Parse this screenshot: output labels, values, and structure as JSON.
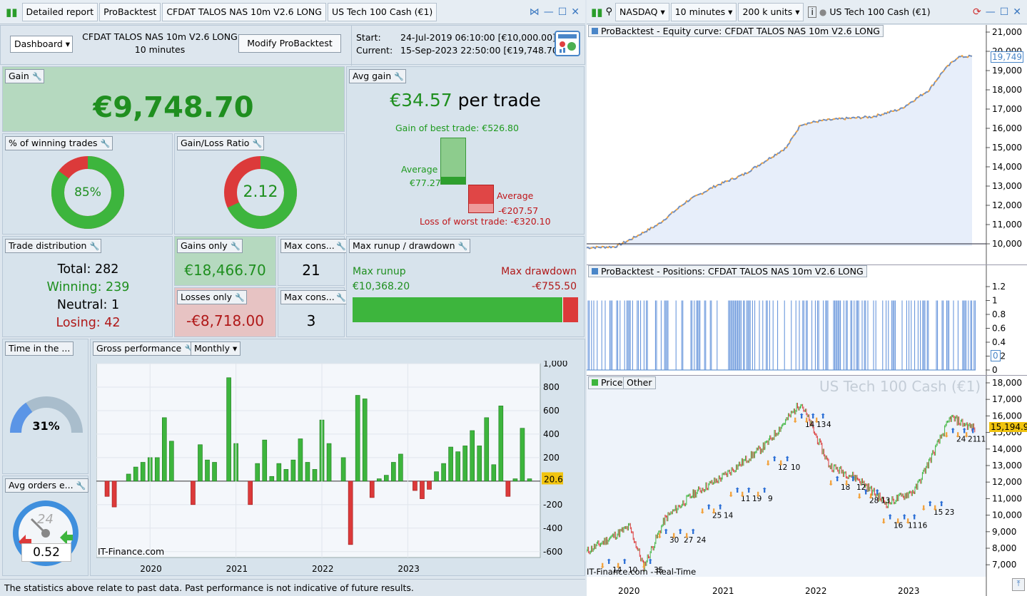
{
  "left_toolbar": {
    "tab1": "Detailed report",
    "tab2": "ProBacktest",
    "tab3": "CFDAT TALOS NAS 10m V2.6 LONG",
    "tab4": "US Tech 100 Cash (€1)"
  },
  "right_toolbar": {
    "market": "NASDAQ",
    "timeframe": "10 minutes",
    "units": "200 k units",
    "instrument": "US Tech 100 Cash (€1)"
  },
  "header": {
    "dashboard": "Dashboard",
    "system_name": "CFDAT TALOS NAS 10m V2.6 LONG",
    "system_tf": "10 minutes",
    "modify": "Modify ProBacktest",
    "start_label": "Start:",
    "start_value": "24-Jul-2019 06:10:00 [€10,000.00]",
    "current_label": "Current:",
    "current_value": "15-Sep-2023 22:50:00 [€19,748.70]"
  },
  "gain": {
    "title": "Gain",
    "value": "€9,748.70"
  },
  "avg_gain": {
    "title": "Avg gain",
    "value": "€34.57",
    "suffix": "per trade",
    "best": "Gain of best trade: €526.80",
    "avg_label_pos": "Average",
    "avg_pos": "€77.27",
    "avg_label_neg": "Average",
    "avg_neg": "-€207.57",
    "worst": "Loss of worst trade: -€320.10"
  },
  "winning_pct": {
    "title": "% of winning trades",
    "value": "85%",
    "fraction": 0.85
  },
  "gl_ratio": {
    "title": "Gain/Loss Ratio",
    "value": "2.12",
    "fraction": 0.68
  },
  "trade_dist": {
    "title": "Trade distribution",
    "total": "Total: 282",
    "winning": "Winning: 239",
    "neutral": "Neutral: 1",
    "losing": "Losing: 42"
  },
  "gains_only": {
    "title": "Gains only",
    "value": "€18,466.70"
  },
  "losses_only": {
    "title": "Losses only",
    "value": "-€8,718.00"
  },
  "max_cons_win": {
    "title": "Max cons...",
    "value": "21"
  },
  "max_cons_loss": {
    "title": "Max cons...",
    "value": "3"
  },
  "runup": {
    "title": "Max runup / drawdown",
    "runup_label": "Max runup",
    "runup_value": "€10,368.20",
    "dd_label": "Max drawdown",
    "dd_value": "-€755.50",
    "runup_fraction": 0.932
  },
  "time_in": {
    "title": "Time in the ...",
    "value": "31%",
    "fraction": 0.31
  },
  "avg_orders": {
    "title": "Avg orders e...",
    "value": "0.52",
    "dial": "24"
  },
  "gross": {
    "title": "Gross performance",
    "period": "Monthly",
    "watermark": "IT-Finance.com",
    "current": "20.6"
  },
  "footer": {
    "text": "The statistics above relate to past data. Past performance is not indicative of future results."
  },
  "equity": {
    "title": "ProBacktest - Equity curve: CFDAT TALOS NAS 10m V2.6 LONG",
    "current": "19,749",
    "ticks": [
      "21,000",
      "20,000",
      "19,000",
      "18,000",
      "17,000",
      "16,000",
      "15,000",
      "14,000",
      "13,000",
      "12,000",
      "11,000",
      "10,000"
    ]
  },
  "positions": {
    "title": "ProBacktest - Positions: CFDAT TALOS NAS 10m V2.6 LONG",
    "ticks": [
      "1.2",
      "1",
      "0.8",
      "0.6",
      "0.4",
      "0.2",
      "0"
    ],
    "current": "0"
  },
  "price": {
    "tab1": "Price",
    "tab2": "Other",
    "watermark": "US Tech 100 Cash (€1)",
    "credit": "IT-Finance.com - Real-Time",
    "current": "15,194.9",
    "ticks": [
      "18,000",
      "17,000",
      "16,000",
      "15,000",
      "14,000",
      "13,000",
      "12,000",
      "11,000",
      "10,000",
      "9,000",
      "8,000",
      "7,000"
    ],
    "years": [
      "2020",
      "2021",
      "2022",
      "2023"
    ],
    "trade_labels": [
      "14",
      "10",
      "35",
      "30",
      "27",
      "24",
      "25",
      "14",
      "11",
      "19",
      "9",
      "12",
      "10",
      "14",
      "13",
      "4",
      "18",
      "12",
      "28",
      "13",
      "16",
      "11",
      "16",
      "15",
      "23",
      "24",
      "21",
      "11"
    ]
  },
  "colors": {
    "green": "#3db53d",
    "red": "#dc3a3a",
    "blue": "#5b8dd9",
    "orange": "#f2a23c"
  },
  "chart_data": {
    "type": "bar",
    "xlabel": "",
    "ylabel": "",
    "ylim": [
      -650,
      1000
    ],
    "ticks": [
      1000,
      800,
      600,
      400,
      200,
      0,
      -200,
      -400,
      -600
    ],
    "years": [
      "2020",
      "2021",
      "2022",
      "2023"
    ],
    "values": [
      -130,
      -220,
      0,
      60,
      120,
      160,
      200,
      200,
      540,
      340,
      0,
      0,
      -200,
      310,
      180,
      160,
      0,
      880,
      320,
      0,
      -200,
      150,
      350,
      40,
      150,
      100,
      180,
      360,
      160,
      100,
      520,
      320,
      0,
      200,
      -540,
      730,
      700,
      -140,
      20,
      50,
      160,
      230,
      0,
      -80,
      -150,
      -70,
      80,
      150,
      290,
      250,
      300,
      430,
      300,
      540,
      140,
      640,
      -130,
      20,
      450,
      20
    ]
  }
}
